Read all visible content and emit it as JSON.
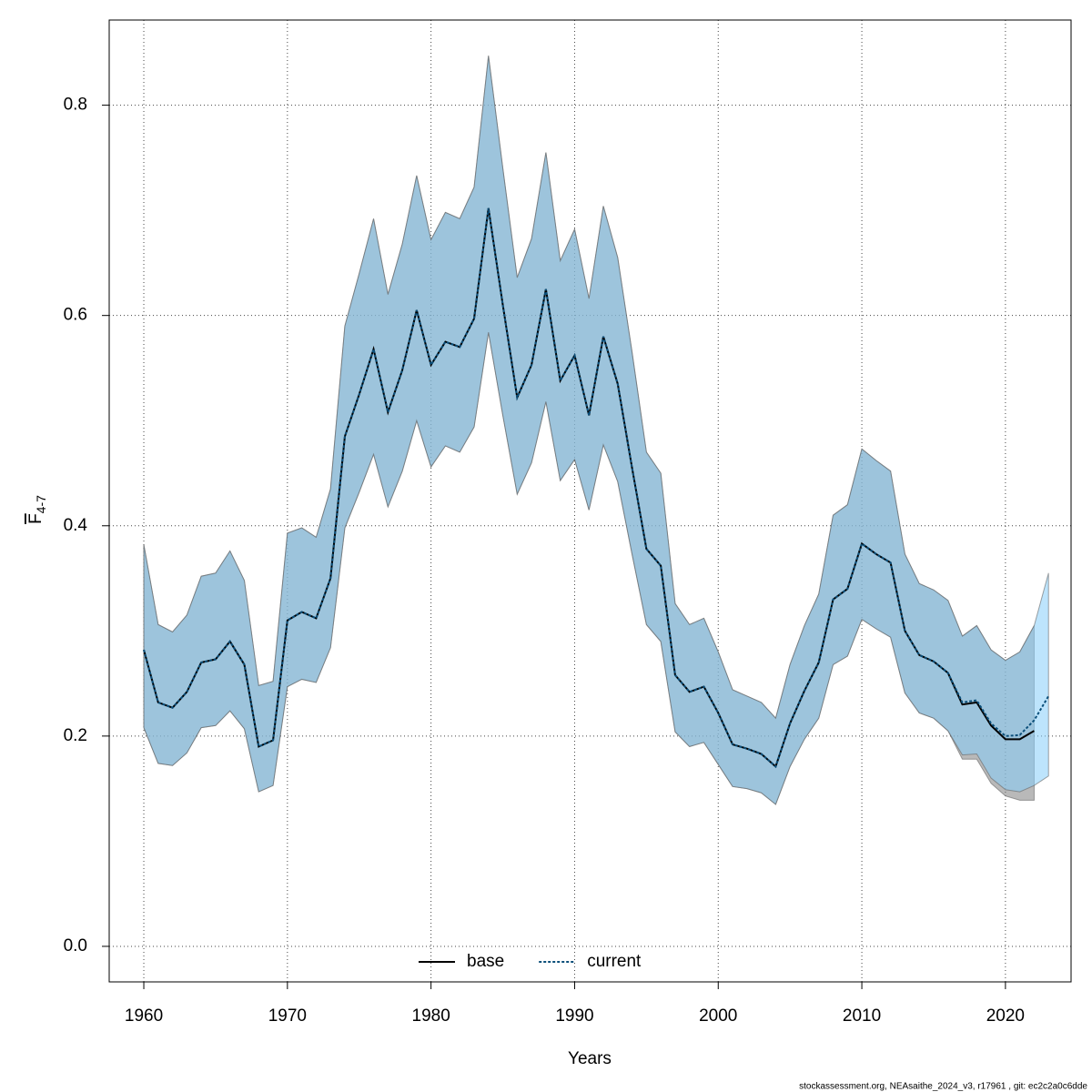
{
  "chart_data": {
    "type": "line",
    "x_label": "Years",
    "y_label": "F",
    "y_label_subscript": "4-7",
    "footer": "stockassessment.org, NEAsaithe_2024_v3, r17961 , git: ec2c2a0c6dde",
    "x": [
      1960,
      1961,
      1962,
      1963,
      1964,
      1965,
      1966,
      1967,
      1968,
      1969,
      1970,
      1971,
      1972,
      1973,
      1974,
      1975,
      1976,
      1977,
      1978,
      1979,
      1980,
      1981,
      1982,
      1983,
      1984,
      1985,
      1986,
      1987,
      1988,
      1989,
      1990,
      1991,
      1992,
      1993,
      1994,
      1995,
      1996,
      1997,
      1998,
      1999,
      2000,
      2001,
      2002,
      2003,
      2004,
      2005,
      2006,
      2007,
      2008,
      2009,
      2010,
      2011,
      2012,
      2013,
      2014,
      2015,
      2016,
      2017,
      2018,
      2019,
      2020,
      2021,
      2022,
      2023
    ],
    "series": [
      {
        "name": "base",
        "color": "#000000",
        "dash": false,
        "band_color": "rgba(128,128,128,0.55)",
        "values": [
          0.282,
          0.232,
          0.227,
          0.242,
          0.27,
          0.273,
          0.29,
          0.268,
          0.19,
          0.196,
          0.31,
          0.318,
          0.312,
          0.35,
          0.485,
          0.525,
          0.568,
          0.508,
          0.548,
          0.605,
          0.553,
          0.575,
          0.57,
          0.597,
          0.702,
          0.61,
          0.522,
          0.553,
          0.625,
          0.538,
          0.562,
          0.505,
          0.58,
          0.535,
          0.455,
          0.378,
          0.362,
          0.258,
          0.242,
          0.247,
          0.222,
          0.192,
          0.188,
          0.183,
          0.171,
          0.212,
          0.243,
          0.27,
          0.33,
          0.34,
          0.383,
          0.373,
          0.365,
          0.3,
          0.277,
          0.271,
          0.26,
          0.23,
          0.232,
          0.21,
          0.197,
          0.197,
          0.205,
          null
        ],
        "upper": [
          0.382,
          0.306,
          0.299,
          0.315,
          0.352,
          0.355,
          0.376,
          0.348,
          0.248,
          0.252,
          0.393,
          0.398,
          0.389,
          0.435,
          0.59,
          0.64,
          0.692,
          0.62,
          0.668,
          0.733,
          0.672,
          0.698,
          0.692,
          0.722,
          0.847,
          0.74,
          0.636,
          0.673,
          0.755,
          0.652,
          0.682,
          0.616,
          0.704,
          0.655,
          0.565,
          0.47,
          0.45,
          0.326,
          0.306,
          0.312,
          0.28,
          0.244,
          0.238,
          0.232,
          0.217,
          0.268,
          0.305,
          0.335,
          0.41,
          0.42,
          0.473,
          0.462,
          0.452,
          0.373,
          0.345,
          0.339,
          0.329,
          0.295,
          0.305,
          0.282,
          0.272,
          0.28,
          0.305,
          null
        ],
        "lower": [
          0.208,
          0.174,
          0.172,
          0.184,
          0.208,
          0.21,
          0.224,
          0.207,
          0.147,
          0.153,
          0.247,
          0.254,
          0.251,
          0.284,
          0.398,
          0.432,
          0.468,
          0.418,
          0.452,
          0.5,
          0.456,
          0.476,
          0.47,
          0.494,
          0.584,
          0.505,
          0.43,
          0.46,
          0.518,
          0.443,
          0.463,
          0.415,
          0.477,
          0.442,
          0.373,
          0.306,
          0.29,
          0.204,
          0.19,
          0.194,
          0.173,
          0.152,
          0.15,
          0.146,
          0.135,
          0.171,
          0.197,
          0.217,
          0.268,
          0.276,
          0.311,
          0.302,
          0.294,
          0.241,
          0.222,
          0.217,
          0.205,
          0.178,
          0.178,
          0.155,
          0.143,
          0.139,
          0.139,
          null
        ]
      },
      {
        "name": "current",
        "color": "#0b4f7a",
        "dash": true,
        "band_color": "rgba(135,206,250,0.55)",
        "values": [
          0.282,
          0.232,
          0.227,
          0.242,
          0.27,
          0.273,
          0.29,
          0.268,
          0.19,
          0.196,
          0.31,
          0.318,
          0.312,
          0.35,
          0.485,
          0.525,
          0.568,
          0.508,
          0.548,
          0.605,
          0.553,
          0.575,
          0.57,
          0.597,
          0.702,
          0.61,
          0.522,
          0.553,
          0.625,
          0.538,
          0.562,
          0.505,
          0.58,
          0.535,
          0.455,
          0.378,
          0.362,
          0.258,
          0.242,
          0.247,
          0.222,
          0.192,
          0.188,
          0.183,
          0.171,
          0.212,
          0.243,
          0.27,
          0.33,
          0.34,
          0.383,
          0.373,
          0.365,
          0.3,
          0.277,
          0.271,
          0.26,
          0.232,
          0.234,
          0.212,
          0.2,
          0.201,
          0.215,
          0.238
        ],
        "upper": [
          0.382,
          0.306,
          0.299,
          0.315,
          0.352,
          0.355,
          0.376,
          0.348,
          0.248,
          0.252,
          0.393,
          0.398,
          0.389,
          0.435,
          0.59,
          0.64,
          0.692,
          0.62,
          0.668,
          0.733,
          0.672,
          0.698,
          0.692,
          0.722,
          0.847,
          0.74,
          0.636,
          0.673,
          0.755,
          0.652,
          0.682,
          0.616,
          0.704,
          0.655,
          0.565,
          0.47,
          0.45,
          0.326,
          0.306,
          0.312,
          0.28,
          0.244,
          0.238,
          0.232,
          0.217,
          0.268,
          0.305,
          0.335,
          0.41,
          0.42,
          0.473,
          0.462,
          0.452,
          0.373,
          0.345,
          0.339,
          0.329,
          0.295,
          0.305,
          0.282,
          0.272,
          0.28,
          0.305,
          0.355
        ],
        "lower": [
          0.208,
          0.174,
          0.172,
          0.184,
          0.208,
          0.21,
          0.224,
          0.207,
          0.147,
          0.153,
          0.247,
          0.254,
          0.251,
          0.284,
          0.398,
          0.432,
          0.468,
          0.418,
          0.452,
          0.5,
          0.456,
          0.476,
          0.47,
          0.494,
          0.584,
          0.505,
          0.43,
          0.46,
          0.518,
          0.443,
          0.463,
          0.415,
          0.477,
          0.442,
          0.373,
          0.306,
          0.29,
          0.204,
          0.19,
          0.194,
          0.173,
          0.152,
          0.15,
          0.146,
          0.135,
          0.171,
          0.197,
          0.217,
          0.268,
          0.276,
          0.311,
          0.302,
          0.294,
          0.241,
          0.222,
          0.217,
          0.205,
          0.182,
          0.183,
          0.16,
          0.149,
          0.147,
          0.153,
          0.162
        ]
      }
    ],
    "xlim": [
      1957.59,
      2024.57
    ],
    "ylim": [
      -0.0338,
      0.881
    ],
    "xticks": [
      1960,
      1970,
      1980,
      1990,
      2000,
      2010,
      2020
    ],
    "yticks": [
      {
        "value": 0,
        "label": "0.0"
      },
      0.2,
      0.4,
      0.6,
      0.8
    ],
    "grid": true,
    "legend": "bottom"
  }
}
